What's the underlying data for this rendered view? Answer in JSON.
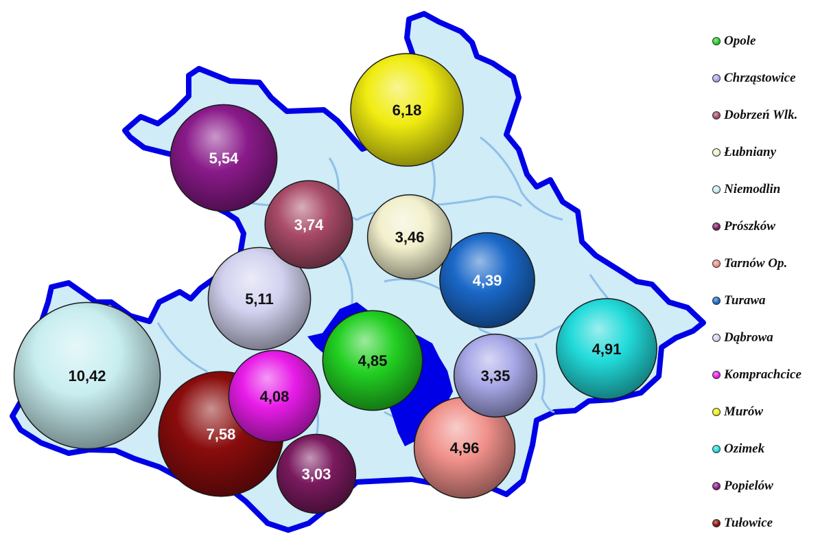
{
  "colors": {
    "border": "#0000e6",
    "region_fill": "#cfecf7",
    "inner_lines": "#8fbfe8",
    "city": "#0000e6"
  },
  "gminas": [
    {
      "name": "Opole",
      "value": "4,85",
      "color": "#22d022",
      "text_color": "#111111"
    },
    {
      "name": "Chrząstowice",
      "value": "3,35",
      "color": "#a8a8e8",
      "text_color": "#111111"
    },
    {
      "name": "Dobrzeń Wlk.",
      "value": "3,74",
      "color": "#a84a68",
      "text_color": "#ffffff"
    },
    {
      "name": "Łubniany",
      "value": "3,46",
      "color": "#f2f0cc",
      "text_color": "#111111"
    },
    {
      "name": "Niemodlin",
      "value": "10,42",
      "color": "#c8eef0",
      "text_color": "#111111"
    },
    {
      "name": "Prószków",
      "value": "3,03",
      "color": "#7a1a5e",
      "text_color": "#ffffff"
    },
    {
      "name": "Tarnów Op.",
      "value": "4,96",
      "color": "#f0908a",
      "text_color": "#111111"
    },
    {
      "name": "Turawa",
      "value": "4,39",
      "color": "#1a68c8",
      "text_color": "#ffffff"
    },
    {
      "name": "Dąbrowa",
      "value": "5,11",
      "color": "#d2d2f0",
      "text_color": "#111111"
    },
    {
      "name": "Komprachcice",
      "value": "4,08",
      "color": "#e81ce8",
      "text_color": "#111111"
    },
    {
      "name": "Murów",
      "value": "6,18",
      "color": "#f0ec10",
      "text_color": "#111111"
    },
    {
      "name": "Ozimek",
      "value": "4,91",
      "color": "#22dada",
      "text_color": "#111111"
    },
    {
      "name": "Popielów",
      "value": "5,54",
      "color": "#8a1a8a",
      "text_color": "#ffffff"
    },
    {
      "name": "Tułowice",
      "value": "7,58",
      "color": "#8a0c0c",
      "text_color": "#ffffff"
    }
  ]
}
